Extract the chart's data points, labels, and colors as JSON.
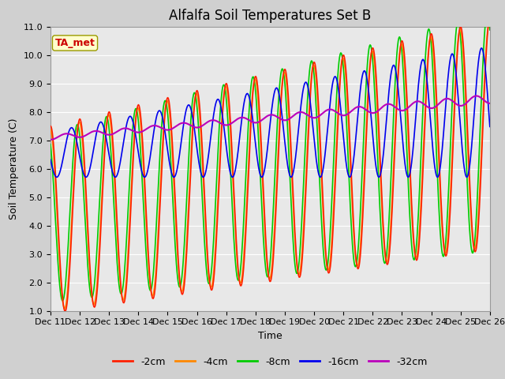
{
  "title": "Alfalfa Soil Temperatures Set B",
  "xlabel": "Time",
  "ylabel": "Soil Temperature (C)",
  "ylim": [
    1.0,
    11.0
  ],
  "yticks": [
    1.0,
    2.0,
    3.0,
    4.0,
    5.0,
    6.0,
    7.0,
    8.0,
    9.0,
    10.0,
    11.0
  ],
  "xtick_labels": [
    "Dec 11",
    "Dec 12",
    "Dec 13",
    "Dec 14",
    "Dec 15",
    "Dec 16",
    "Dec 17",
    "Dec 18",
    "Dec 19",
    "Dec 20",
    "Dec 21",
    "Dec 22",
    "Dec 23",
    "Dec 24",
    "Dec 25",
    "Dec 26"
  ],
  "colors": {
    "-2cm": "#ff2000",
    "-4cm": "#ff8800",
    "-8cm": "#00cc00",
    "-16cm": "#0000ee",
    "-32cm": "#bb00bb"
  },
  "legend_entries": [
    "-2cm",
    "-4cm",
    "-8cm",
    "-16cm",
    "-32cm"
  ],
  "ta_met_label": "TA_met",
  "ta_met_color": "#cc0000",
  "ta_met_bg": "#ffffcc",
  "fig_bg_color": "#d0d0d0",
  "plot_bg_color": "#e8e8e8",
  "title_fontsize": 12,
  "axis_label_fontsize": 9,
  "tick_fontsize": 8,
  "grid_color": "#ffffff",
  "n_points": 720
}
